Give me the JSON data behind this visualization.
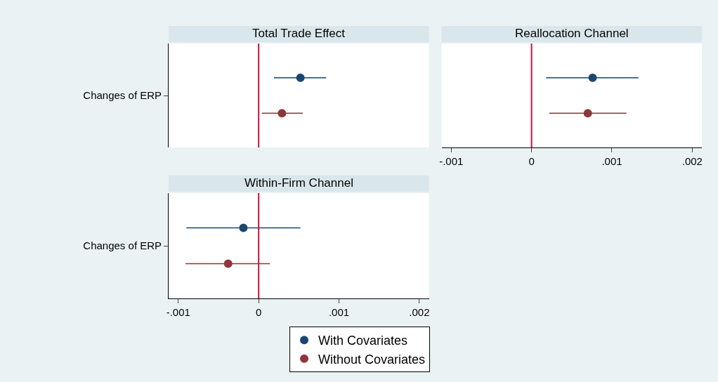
{
  "chart_data": [
    {
      "type": "scatter",
      "title": "Total Trade Effect",
      "categories": [
        "Changes of ERP"
      ],
      "orientation": "horizontal",
      "marker": "circle",
      "legend": "bottom",
      "tick_labels": "y",
      "xlim": [
        -0.00112,
        0.00212
      ],
      "ref_lines": [
        {
          "axis": "x",
          "value": 0,
          "color": "#d0103a"
        }
      ],
      "series": [
        {
          "name": "With Covariates",
          "color": "#1a476f",
          "values": [
            0.00052
          ],
          "errors": [
            [
              0.00019,
              0.00084
            ]
          ]
        },
        {
          "name": "Without Covariates",
          "color": "#90353b",
          "values": [
            0.00029
          ],
          "errors": [
            [
              4e-05,
              0.00055
            ]
          ]
        }
      ]
    },
    {
      "type": "scatter",
      "title": "Reallocation Channel",
      "categories": [
        null
      ],
      "orientation": "horizontal",
      "marker": "circle",
      "tick_labels": "x",
      "xlim": [
        -0.00112,
        0.00212
      ],
      "xticks": [
        {
          "value": -0.001,
          "label": "-.001"
        },
        0,
        {
          "value": 0.001,
          "label": ".001"
        },
        {
          "value": 0.002,
          "label": ".002"
        }
      ],
      "ref_lines": [
        {
          "axis": "x",
          "value": 0,
          "color": "#d0103a"
        }
      ],
      "series": [
        {
          "color": "#1a476f",
          "values": [
            0.00076
          ],
          "errors": [
            [
              0.00018,
              0.00133
            ]
          ]
        },
        {
          "color": "#90353b",
          "values": [
            0.0007
          ],
          "errors": [
            [
              0.00022,
              0.00118
            ]
          ]
        }
      ]
    },
    {
      "type": "scatter",
      "title": "Within-Firm Channel",
      "categories": [
        "Changes of ERP"
      ],
      "orientation": "horizontal",
      "marker": "circle",
      "xlim": [
        -0.00112,
        0.00212
      ],
      "xticks": [
        {
          "value": -0.001,
          "label": "-.001"
        },
        0,
        {
          "value": 0.001,
          "label": ".001"
        },
        {
          "value": 0.002,
          "label": ".002"
        }
      ],
      "ref_lines": [
        {
          "axis": "x",
          "value": 0,
          "color": "#d0103a"
        }
      ],
      "series": [
        {
          "color": "#1a476f",
          "values": [
            -0.00019
          ],
          "errors": [
            [
              -0.0009,
              0.00052
            ]
          ]
        },
        {
          "color": "#90353b",
          "values": [
            -0.00038
          ],
          "errors": [
            [
              -0.00091,
              0.00014
            ]
          ]
        }
      ]
    }
  ]
}
